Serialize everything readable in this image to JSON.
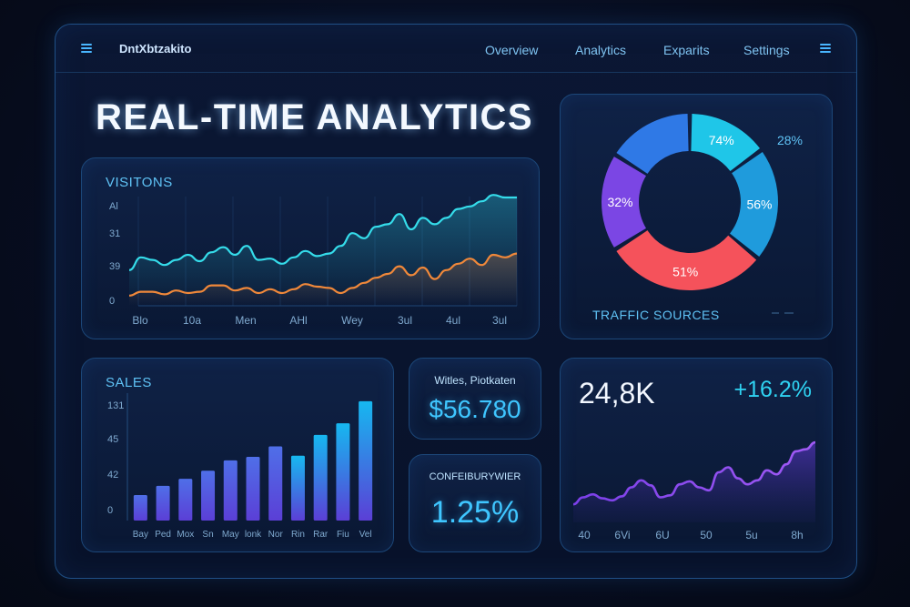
{
  "header": {
    "brand": "DntXbtzakito",
    "nav": [
      "Overview",
      "Analytics",
      "Exparits",
      "Settings"
    ]
  },
  "title": "REAL-TIME ANALYTICS",
  "visitors": {
    "label": "VISITONS",
    "chart_data": {
      "type": "line",
      "y_ticks": [
        "Al",
        "31",
        "39",
        "0"
      ],
      "x_ticks": [
        "Blo",
        "10a",
        "Men",
        "AHl",
        "Wey",
        "3ul",
        "4ul",
        "3ul"
      ],
      "series": [
        {
          "color": "#35dcea",
          "values": [
            28,
            38,
            36,
            32,
            36,
            40,
            35,
            42,
            46,
            40,
            47,
            36,
            37,
            33,
            38,
            43,
            39,
            41,
            47,
            57,
            53,
            62,
            64,
            72,
            60,
            69,
            64,
            69,
            76,
            78,
            82,
            87,
            85,
            85
          ]
        },
        {
          "color": "#f0883a",
          "values": [
            8,
            11,
            11,
            9,
            12,
            10,
            11,
            16,
            16,
            12,
            14,
            10,
            13,
            10,
            13,
            17,
            15,
            14,
            10,
            14,
            18,
            22,
            25,
            31,
            24,
            30,
            21,
            28,
            33,
            37,
            32,
            40,
            38,
            41
          ]
        }
      ]
    }
  },
  "traffic": {
    "label": "TRAFFIC SOURCES",
    "chart_data": {
      "type": "pie",
      "slices": [
        {
          "label": "74%",
          "value": 15,
          "color": "#1fc6e8"
        },
        {
          "label": "56%",
          "value": 21,
          "color": "#1f9bdc"
        },
        {
          "label": "51%",
          "value": 30,
          "color": "#f5525b"
        },
        {
          "label": "32%",
          "value": 18,
          "color": "#7b46e4"
        },
        {
          "label": "",
          "value": 16,
          "color": "#2f79e6"
        }
      ],
      "outside_label": "28%"
    }
  },
  "sales": {
    "label": "SALES",
    "chart_data": {
      "type": "bar",
      "y_ticks": [
        "131",
        "45",
        "42",
        "0"
      ],
      "categories": [
        "Bay",
        "Ped",
        "Mox",
        "Sn",
        "May",
        "lonk",
        "Nor",
        "Rin",
        "Rar",
        "Fiu",
        "Vel"
      ],
      "values": [
        22,
        30,
        36,
        43,
        52,
        55,
        64,
        56,
        74,
        84,
        103
      ],
      "ylim": [
        0,
        110
      ],
      "color_start": "#5b3fd6",
      "color_end": "#16b8f0"
    }
  },
  "kpi_revenue": {
    "subtitle": "Witles, Piotkaten",
    "value": "$56.780"
  },
  "kpi_rate": {
    "subtitle": "CONFEIBURYWIER",
    "value": "1.25%"
  },
  "trend": {
    "value": "24,8K",
    "change": "+16.2%",
    "change_color": "#2fd3f2",
    "chart_data": {
      "type": "area",
      "x_ticks": [
        "40",
        "6Vi",
        "6U",
        "50",
        "5u",
        "8h"
      ],
      "values": [
        18,
        25,
        28,
        24,
        22,
        26,
        35,
        42,
        37,
        25,
        27,
        38,
        41,
        35,
        32,
        50,
        55,
        44,
        38,
        42,
        52,
        48,
        58,
        71,
        73,
        80
      ],
      "ylim": [
        0,
        100
      ],
      "color": "#8a52f2"
    }
  }
}
